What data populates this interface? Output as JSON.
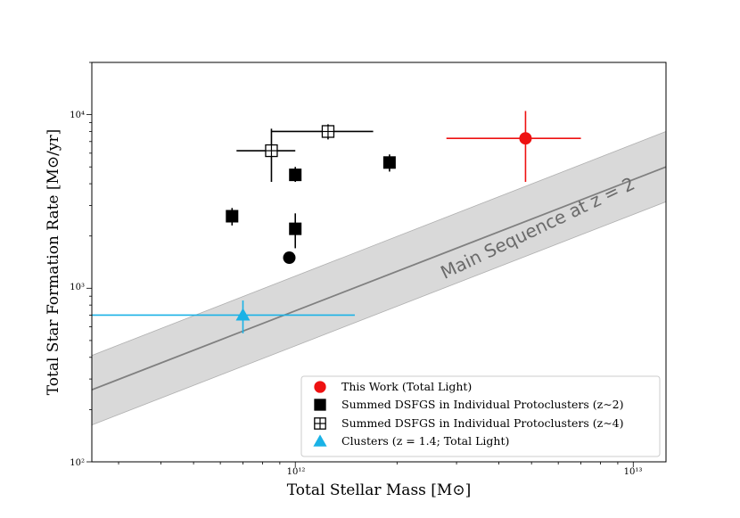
{
  "chart_data": {
    "type": "scatter",
    "title": "",
    "xlabel": "Total Stellar Mass [M⊙]",
    "ylabel": "Total Star Formation Rate [M⊙/yr]",
    "xscale": "log",
    "yscale": "log",
    "xlim": [
      250000000000.0,
      12500000000000.0
    ],
    "ylim": [
      100,
      20000
    ],
    "x_tick_labels": [
      "10¹²",
      "10¹³"
    ],
    "y_tick_labels": [
      "10²",
      "10³",
      "10⁴"
    ],
    "grid": false,
    "legend_placement": "lower-right",
    "series": [
      {
        "name": "This Work (Total Light)",
        "marker": "circle-filled",
        "color": "#ee1111",
        "points": [
          {
            "x": 4800000000000.0,
            "y": 7300,
            "xerr": [
              2000000000000.0,
              2200000000000.0
            ],
            "yerr": [
              3200,
              3200
            ]
          }
        ]
      },
      {
        "name": "Summed DSFGS in Individual Protoclusters (z∼2)",
        "marker": "square-filled",
        "color": "#000000",
        "points": [
          {
            "x": 650000000000.0,
            "y": 2600,
            "yerr": [
              300,
              300
            ]
          },
          {
            "x": 1000000000000.0,
            "y": 4500,
            "yerr": [
              400,
              500
            ]
          },
          {
            "x": 1000000000000.0,
            "y": 2200,
            "yerr": [
              500,
              500
            ]
          },
          {
            "x": 1900000000000.0,
            "y": 5300,
            "yerr": [
              600,
              600
            ]
          }
        ]
      },
      {
        "name": "",
        "marker": "circle-filled",
        "color": "#000000",
        "points": [
          {
            "x": 960000000000.0,
            "y": 1500
          }
        ]
      },
      {
        "name": "Summed DSFGS in Individual Protoclusters (z∼4)",
        "marker": "square-open-plus",
        "color": "#000000",
        "points": [
          {
            "x": 850000000000.0,
            "y": 6200,
            "xerr": [
              180000000000.0,
              150000000000.0
            ],
            "yerr": [
              2100,
              2100
            ]
          },
          {
            "x": 1250000000000.0,
            "y": 8000,
            "xerr": [
              400000000000.0,
              450000000000.0
            ],
            "yerr": [
              800,
              800
            ]
          }
        ]
      },
      {
        "name": "Clusters (z = 1.4; Total Light)",
        "marker": "triangle-filled",
        "color": "#1ab2e6",
        "points": [
          {
            "x": 700000000000.0,
            "y": 700,
            "xerr": [
              450000000000.0,
              800000000000.0
            ],
            "yerr": [
              150,
              150
            ]
          }
        ]
      }
    ],
    "bands": [
      {
        "name": "Main Sequence at z = 2",
        "line_color": "#808080",
        "fill_color": "#d9d9d9",
        "x": [
          250000000000.0,
          12500000000000.0
        ],
        "center": [
          260,
          5000
        ],
        "lower": [
          163,
          3150
        ],
        "upper": [
          410,
          8000
        ]
      }
    ],
    "annotations": [
      {
        "text": "Main Sequence at z = 2",
        "x": 4800000000000.0,
        "y": 1950
      }
    ]
  }
}
